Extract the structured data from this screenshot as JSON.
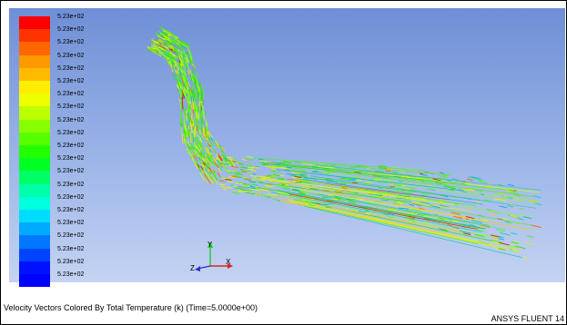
{
  "colorbar": {
    "colors": [
      "#ff0000",
      "#ff3300",
      "#ff6600",
      "#ff9900",
      "#ffbb00",
      "#ffee00",
      "#eeff00",
      "#bbff00",
      "#88ff00",
      "#55ff00",
      "#22ff00",
      "#00ff22",
      "#00ff66",
      "#00ffaa",
      "#00ffdd",
      "#00ddff",
      "#00aaff",
      "#0077ff",
      "#0044ff",
      "#0011ff",
      "#0000ff"
    ],
    "labels": [
      "5.23e+02",
      "5.23e+02",
      "5.23e+02",
      "5.23e+02",
      "5.23e+02",
      "5.23e+02",
      "5.23e+02",
      "5.23e+02",
      "5.23e+02",
      "5.23e+02",
      "5.23e+02",
      "5.23e+02",
      "5.23e+02",
      "5.23e+02",
      "5.23e+02",
      "5.23e+02",
      "5.23e+02",
      "5.23e+02",
      "5.23e+02",
      "5.23e+02",
      "5.23e+02"
    ]
  },
  "axes": {
    "y_label": "Y",
    "z_label": "Z",
    "x_label": "X"
  },
  "caption": "Velocity Vectors Colored By Total Temperature (k)  (Time=5.0000e+00)",
  "brand": "ANSYS FLUENT 14"
}
